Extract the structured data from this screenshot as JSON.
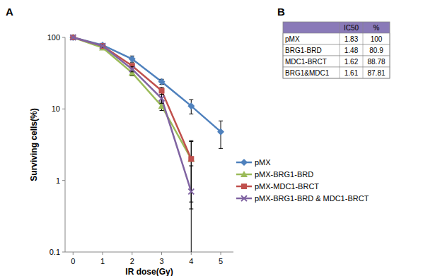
{
  "chart_data": {
    "type": "line",
    "annotations": [
      "A"
    ],
    "x_label": "IR dose(Gy)",
    "y_label": "Surviving cells(%)",
    "categories": [
      "0",
      "1",
      "2",
      "3",
      "4",
      "5"
    ],
    "log": "y",
    "ylim": [
      0.1,
      100
    ],
    "yticks": [
      0.1,
      1,
      10,
      100
    ],
    "grid": false,
    "legend": "right",
    "series": [
      {
        "name": "pMX",
        "color": "#4f81bd",
        "marker": "diamond",
        "values": [
          100,
          78,
          50,
          24,
          11,
          4.8
        ],
        "errors": [
          0,
          3,
          5,
          2,
          2.5,
          2
        ]
      },
      {
        "name": "pMX-BRG1-BRD",
        "color": "#9bbb59",
        "marker": "triangle",
        "values": [
          100,
          72,
          32,
          11,
          2.0,
          null
        ],
        "errors": [
          0,
          3,
          3,
          1.5,
          1.5,
          null
        ]
      },
      {
        "name": "pMX-MDC1-BRCT",
        "color": "#c0504d",
        "marker": "square",
        "values": [
          100,
          76,
          40,
          18,
          2.0,
          null
        ],
        "errors": [
          0,
          3,
          3,
          2,
          1.6,
          null
        ]
      },
      {
        "name": "pMX-BRG1-BRD & MDC1-BRCT",
        "color": "#8064a2",
        "marker": "x",
        "values": [
          100,
          76,
          36,
          14,
          0.7,
          null
        ],
        "errors": [
          0,
          3,
          3,
          2,
          0.9,
          null
        ]
      }
    ]
  },
  "table": {
    "label": "B",
    "header": [
      "IC50",
      "%"
    ],
    "rows": [
      [
        "pMX",
        1.83,
        100
      ],
      [
        "BRG1-BRD",
        1.48,
        80.9
      ],
      [
        "MDC1-BRCT",
        1.62,
        88.78
      ],
      [
        "BRG1&MDC1",
        1.61,
        87.81
      ]
    ]
  }
}
